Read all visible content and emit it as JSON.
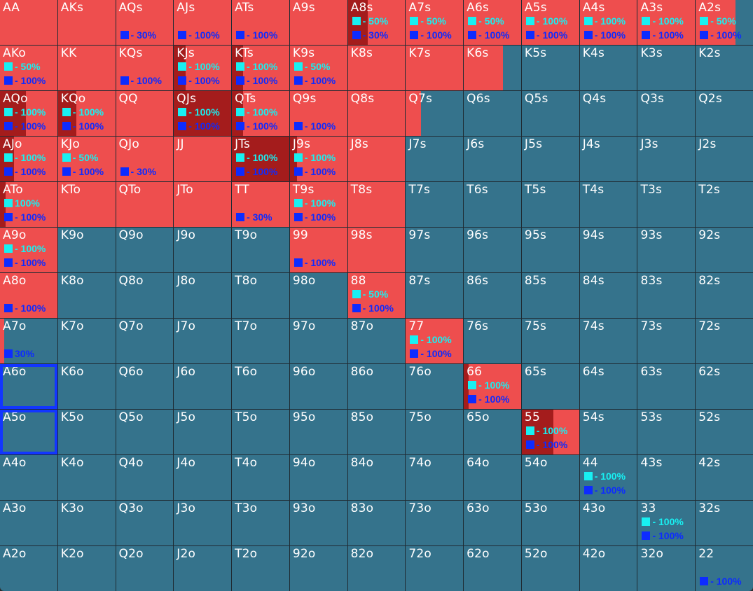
{
  "colors": {
    "fold": "#35738c",
    "raise": "#ee4e4e",
    "dark": "#a41c1c",
    "cyan": "#18f0f2",
    "blue": "#0d2bff"
  },
  "selected": [
    "A6o",
    "A5o"
  ],
  "rows": [
    [
      {
        "h": "AA",
        "r": 1
      },
      {
        "h": "AKs",
        "r": 1
      },
      {
        "h": "AQs",
        "r": 1,
        "b": "- 30%"
      },
      {
        "h": "AJs",
        "r": 1,
        "b": "- 100%"
      },
      {
        "h": "ATs",
        "r": 1,
        "b": "- 100%"
      },
      {
        "h": "A9s",
        "r": 1
      },
      {
        "h": "A8s",
        "r": 1,
        "d": 0.35,
        "c": "- 50%",
        "b": "- 30%"
      },
      {
        "h": "A7s",
        "r": 1,
        "c": "- 50%",
        "b": "- 100%"
      },
      {
        "h": "A6s",
        "r": 1,
        "c": "- 50%",
        "b": "- 100%"
      },
      {
        "h": "A5s",
        "r": 1,
        "c": "- 100%",
        "b": "- 100%"
      },
      {
        "h": "A4s",
        "r": 1,
        "c": "- 100%",
        "b": "- 100%"
      },
      {
        "h": "A3s",
        "r": 1,
        "c": "- 100%",
        "b": "- 100%"
      },
      {
        "h": "A2s",
        "r": 0.7,
        "c": "- 50%",
        "b": "- 100%"
      }
    ],
    [
      {
        "h": "AKo",
        "r": 1,
        "c": "- 50%",
        "b": "- 100%"
      },
      {
        "h": "KK",
        "r": 1
      },
      {
        "h": "KQs",
        "r": 1,
        "b": "- 100%"
      },
      {
        "h": "KJs",
        "r": 1,
        "d": 0.2,
        "c": "- 100%",
        "b": "- 100%"
      },
      {
        "h": "KTs",
        "r": 1,
        "d": 0.2,
        "c": "- 100%",
        "b": "- 100%"
      },
      {
        "h": "K9s",
        "r": 1,
        "c": "- 50%",
        "b": "- 100%"
      },
      {
        "h": "K8s",
        "r": 1
      },
      {
        "h": "K7s",
        "r": 1
      },
      {
        "h": "K6s",
        "r": 0.68
      },
      {
        "h": "K5s",
        "r": 0
      },
      {
        "h": "K4s",
        "r": 0
      },
      {
        "h": "K3s",
        "r": 0
      },
      {
        "h": "K2s",
        "r": 0
      }
    ],
    [
      {
        "h": "AQo",
        "r": 1,
        "d": 0.45,
        "c": "- 100%",
        "b": "- 100%"
      },
      {
        "h": "KQo",
        "r": 1,
        "d": 0.32,
        "c": "- 100%",
        "b": "- 100%"
      },
      {
        "h": "QQ",
        "r": 1
      },
      {
        "h": "QJs",
        "r": 1,
        "d": 1,
        "c": "- 100%",
        "b": "- 100%"
      },
      {
        "h": "QTs",
        "r": 1,
        "d": 0.2,
        "c": "- 100%",
        "b": "- 100%"
      },
      {
        "h": "Q9s",
        "r": 1,
        "b": "- 100%"
      },
      {
        "h": "Q8s",
        "r": 1
      },
      {
        "h": "Q7s",
        "r": 0.27
      },
      {
        "h": "Q6s",
        "r": 0
      },
      {
        "h": "Q5s",
        "r": 0
      },
      {
        "h": "Q4s",
        "r": 0
      },
      {
        "h": "Q3s",
        "r": 0
      },
      {
        "h": "Q2s",
        "r": 0
      }
    ],
    [
      {
        "h": "AJo",
        "r": 1,
        "d": 0.25,
        "c": "- 100%",
        "b": "- 100%"
      },
      {
        "h": "KJo",
        "r": 1,
        "c": "- 50%",
        "b": "- 100%"
      },
      {
        "h": "QJo",
        "r": 1,
        "b": "- 30%"
      },
      {
        "h": "JJ",
        "r": 1
      },
      {
        "h": "JTs",
        "r": 1,
        "d": 1,
        "c": "- 100%",
        "b": "- 100%"
      },
      {
        "h": "J9s",
        "r": 1,
        "d": 0.12,
        "c": "- 100%",
        "b": "- 100%"
      },
      {
        "h": "J8s",
        "r": 1
      },
      {
        "h": "J7s",
        "r": 0
      },
      {
        "h": "J6s",
        "r": 0
      },
      {
        "h": "J5s",
        "r": 0
      },
      {
        "h": "J4s",
        "r": 0
      },
      {
        "h": "J3s",
        "r": 0
      },
      {
        "h": "J2s",
        "r": 0
      }
    ],
    [
      {
        "h": "ATo",
        "r": 1,
        "d": 0.1,
        "c": "100%",
        "b": "- 100%"
      },
      {
        "h": "KTo",
        "r": 1
      },
      {
        "h": "QTo",
        "r": 1
      },
      {
        "h": "JTo",
        "r": 1
      },
      {
        "h": "TT",
        "r": 1,
        "b": "- 30%"
      },
      {
        "h": "T9s",
        "r": 1,
        "c": "- 100%",
        "b": "- 100%"
      },
      {
        "h": "T8s",
        "r": 1
      },
      {
        "h": "T7s",
        "r": 0
      },
      {
        "h": "T6s",
        "r": 0
      },
      {
        "h": "T5s",
        "r": 0
      },
      {
        "h": "T4s",
        "r": 0
      },
      {
        "h": "T3s",
        "r": 0
      },
      {
        "h": "T2s",
        "r": 0
      }
    ],
    [
      {
        "h": "A9o",
        "r": 1,
        "c": "- 100%",
        "b": "- 100%"
      },
      {
        "h": "K9o",
        "r": 0
      },
      {
        "h": "Q9o",
        "r": 0
      },
      {
        "h": "J9o",
        "r": 0
      },
      {
        "h": "T9o",
        "r": 0
      },
      {
        "h": "99",
        "r": 1,
        "b": "- 100%"
      },
      {
        "h": "98s",
        "r": 1
      },
      {
        "h": "97s",
        "r": 0
      },
      {
        "h": "96s",
        "r": 0
      },
      {
        "h": "95s",
        "r": 0
      },
      {
        "h": "94s",
        "r": 0
      },
      {
        "h": "93s",
        "r": 0
      },
      {
        "h": "92s",
        "r": 0
      }
    ],
    [
      {
        "h": "A8o",
        "r": 1,
        "b": "- 100%"
      },
      {
        "h": "K8o",
        "r": 0
      },
      {
        "h": "Q8o",
        "r": 0
      },
      {
        "h": "J8o",
        "r": 0
      },
      {
        "h": "T8o",
        "r": 0
      },
      {
        "h": "98o",
        "r": 0
      },
      {
        "h": "88",
        "r": 1,
        "c": "- 50%",
        "b": "- 100%"
      },
      {
        "h": "87s",
        "r": 0
      },
      {
        "h": "86s",
        "r": 0
      },
      {
        "h": "85s",
        "r": 0
      },
      {
        "h": "84s",
        "r": 0
      },
      {
        "h": "83s",
        "r": 0
      },
      {
        "h": "82s",
        "r": 0
      }
    ],
    [
      {
        "h": "A7o",
        "r": 0.07,
        "b": "30%"
      },
      {
        "h": "K7o",
        "r": 0
      },
      {
        "h": "Q7o",
        "r": 0
      },
      {
        "h": "J7o",
        "r": 0
      },
      {
        "h": "T7o",
        "r": 0
      },
      {
        "h": "97o",
        "r": 0
      },
      {
        "h": "87o",
        "r": 0
      },
      {
        "h": "77",
        "r": 1,
        "c": "- 100%",
        "b": "- 100%"
      },
      {
        "h": "76s",
        "r": 0
      },
      {
        "h": "75s",
        "r": 0
      },
      {
        "h": "74s",
        "r": 0
      },
      {
        "h": "73s",
        "r": 0
      },
      {
        "h": "72s",
        "r": 0
      }
    ],
    [
      {
        "h": "A6o",
        "r": 0
      },
      {
        "h": "K6o",
        "r": 0
      },
      {
        "h": "Q6o",
        "r": 0
      },
      {
        "h": "J6o",
        "r": 0
      },
      {
        "h": "T6o",
        "r": 0
      },
      {
        "h": "96o",
        "r": 0
      },
      {
        "h": "86o",
        "r": 0
      },
      {
        "h": "76o",
        "r": 0
      },
      {
        "h": "66",
        "r": 1,
        "d": 0.08,
        "c": "- 100%",
        "b": "- 100%"
      },
      {
        "h": "65s",
        "r": 0
      },
      {
        "h": "64s",
        "r": 0
      },
      {
        "h": "63s",
        "r": 0
      },
      {
        "h": "62s",
        "r": 0
      }
    ],
    [
      {
        "h": "A5o",
        "r": 0
      },
      {
        "h": "K5o",
        "r": 0
      },
      {
        "h": "Q5o",
        "r": 0
      },
      {
        "h": "J5o",
        "r": 0
      },
      {
        "h": "T5o",
        "r": 0
      },
      {
        "h": "95o",
        "r": 0
      },
      {
        "h": "85o",
        "r": 0
      },
      {
        "h": "75o",
        "r": 0
      },
      {
        "h": "65o",
        "r": 0
      },
      {
        "h": "55",
        "r": 1,
        "d": 0.55,
        "c": "- 100%",
        "b": "- 100%"
      },
      {
        "h": "54s",
        "r": 0
      },
      {
        "h": "53s",
        "r": 0
      },
      {
        "h": "52s",
        "r": 0
      }
    ],
    [
      {
        "h": "A4o",
        "r": 0
      },
      {
        "h": "K4o",
        "r": 0
      },
      {
        "h": "Q4o",
        "r": 0
      },
      {
        "h": "J4o",
        "r": 0
      },
      {
        "h": "T4o",
        "r": 0
      },
      {
        "h": "94o",
        "r": 0
      },
      {
        "h": "84o",
        "r": 0
      },
      {
        "h": "74o",
        "r": 0
      },
      {
        "h": "64o",
        "r": 0
      },
      {
        "h": "54o",
        "r": 0
      },
      {
        "h": "44",
        "r": 0,
        "c": "- 100%",
        "b": "- 100%"
      },
      {
        "h": "43s",
        "r": 0
      },
      {
        "h": "42s",
        "r": 0
      }
    ],
    [
      {
        "h": "A3o",
        "r": 0
      },
      {
        "h": "K3o",
        "r": 0
      },
      {
        "h": "Q3o",
        "r": 0
      },
      {
        "h": "J3o",
        "r": 0
      },
      {
        "h": "T3o",
        "r": 0
      },
      {
        "h": "93o",
        "r": 0
      },
      {
        "h": "83o",
        "r": 0
      },
      {
        "h": "73o",
        "r": 0
      },
      {
        "h": "63o",
        "r": 0
      },
      {
        "h": "53o",
        "r": 0
      },
      {
        "h": "43o",
        "r": 0
      },
      {
        "h": "33",
        "r": 0,
        "c": "- 100%",
        "b": "- 100%"
      },
      {
        "h": "32s",
        "r": 0
      }
    ],
    [
      {
        "h": "A2o",
        "r": 0
      },
      {
        "h": "K2o",
        "r": 0
      },
      {
        "h": "Q2o",
        "r": 0
      },
      {
        "h": "J2o",
        "r": 0
      },
      {
        "h": "T2o",
        "r": 0
      },
      {
        "h": "92o",
        "r": 0
      },
      {
        "h": "82o",
        "r": 0
      },
      {
        "h": "72o",
        "r": 0
      },
      {
        "h": "62o",
        "r": 0
      },
      {
        "h": "52o",
        "r": 0
      },
      {
        "h": "42o",
        "r": 0
      },
      {
        "h": "32o",
        "r": 0
      },
      {
        "h": "22",
        "r": 0,
        "b": "- 100%"
      }
    ]
  ]
}
